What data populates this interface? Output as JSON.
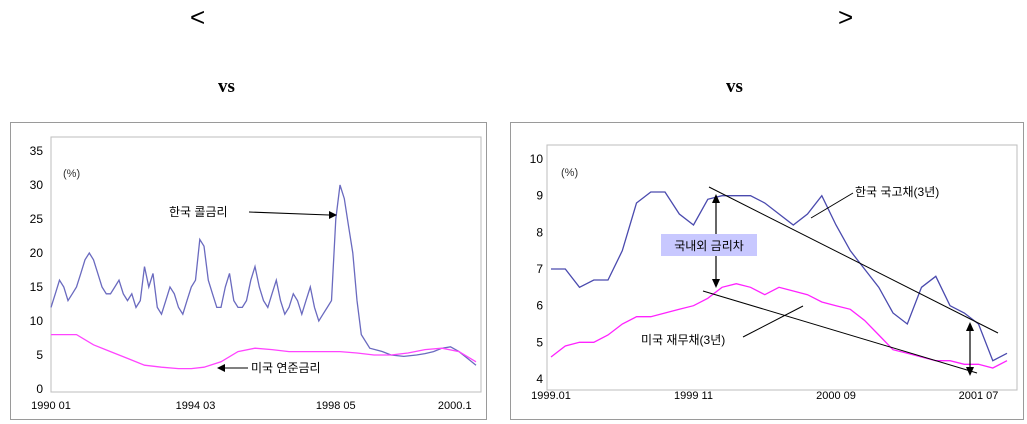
{
  "header": {
    "left_bracket": "<",
    "right_bracket": ">",
    "vs_left": "vs",
    "vs_right": "vs"
  },
  "chart_data": [
    {
      "type": "line",
      "unit": "(%)",
      "ylim": [
        0,
        35
      ],
      "yticks": [
        "0",
        "5",
        "10",
        "15",
        "20",
        "25",
        "30",
        "35"
      ],
      "xticks": [
        "1990 01",
        "1994 03",
        "1998 05",
        "2000.1"
      ],
      "x_index_range": [
        0,
        100
      ],
      "xtick_index": [
        0,
        34,
        67,
        95
      ],
      "grid": false,
      "series": [
        {
          "name": "한국 콜금리",
          "color": "#6a6abf",
          "x": [
            0,
            1,
            2,
            3,
            4,
            5,
            6,
            7,
            8,
            9,
            10,
            11,
            12,
            13,
            14,
            15,
            16,
            17,
            18,
            19,
            20,
            21,
            22,
            23,
            24,
            25,
            26,
            27,
            28,
            29,
            30,
            31,
            32,
            33,
            34,
            35,
            36,
            37,
            38,
            39,
            40,
            41,
            42,
            43,
            44,
            45,
            46,
            47,
            48,
            49,
            50,
            51,
            52,
            53,
            54,
            55,
            56,
            57,
            58,
            59,
            60,
            61,
            62,
            63,
            64,
            65,
            66,
            67,
            68,
            69,
            70,
            71,
            72,
            73,
            75,
            78,
            80,
            83,
            86,
            88,
            90,
            92,
            94,
            96,
            98,
            100
          ],
          "y": [
            12,
            14,
            16,
            15,
            13,
            14,
            15,
            17,
            19,
            20,
            19,
            17,
            15,
            14,
            14,
            15,
            16,
            14,
            13,
            14,
            12,
            13,
            18,
            15,
            17,
            12,
            11,
            13,
            15,
            14,
            12,
            11,
            13,
            15,
            16,
            22,
            21,
            16,
            14,
            12,
            12,
            15,
            17,
            13,
            12,
            12,
            13,
            16,
            18,
            15,
            13,
            12,
            14,
            16,
            13,
            11,
            12,
            14,
            13,
            11,
            13,
            15,
            12,
            10,
            11,
            12,
            13,
            25,
            30,
            28,
            24,
            20,
            13,
            8,
            6,
            5.5,
            5,
            4.8,
            5,
            5.2,
            5.5,
            6,
            6.2,
            5.5,
            4.5,
            3.5
          ]
        },
        {
          "name": "미국 연준금리",
          "color": "#ff44ff",
          "x": [
            0,
            4,
            6,
            10,
            14,
            18,
            22,
            26,
            30,
            33,
            36,
            40,
            44,
            48,
            52,
            56,
            60,
            64,
            68,
            72,
            76,
            80,
            84,
            88,
            92,
            96,
            100
          ],
          "y": [
            8,
            8,
            8,
            6.5,
            5.5,
            4.5,
            3.5,
            3.2,
            3,
            3,
            3.2,
            4,
            5.5,
            6,
            5.8,
            5.5,
            5.5,
            5.5,
            5.5,
            5.3,
            5,
            5,
            5.3,
            5.8,
            6,
            5.5,
            4
          ]
        }
      ],
      "annotations": [
        {
          "text": "한국 콜금리"
        },
        {
          "text": "미국 연준금리"
        }
      ]
    },
    {
      "type": "line",
      "unit": "(%)",
      "ylim": [
        4,
        10
      ],
      "yticks": [
        "4",
        "5",
        "6",
        "7",
        "8",
        "9",
        "10"
      ],
      "xticks": [
        "1999.01",
        "1999 11",
        "2000 09",
        "2001 07"
      ],
      "x_index_range": [
        0,
        32
      ],
      "xtick_index": [
        0,
        10,
        20,
        30
      ],
      "grid": false,
      "series": [
        {
          "name": "한국 국고채(3년)",
          "color": "#4a4aae",
          "x": [
            0,
            1,
            2,
            3,
            4,
            5,
            6,
            7,
            8,
            9,
            10,
            11,
            12,
            13,
            14,
            15,
            16,
            17,
            18,
            19,
            20,
            21,
            22,
            23,
            24,
            25,
            26,
            27,
            28,
            29,
            30,
            31,
            32
          ],
          "y": [
            7,
            7,
            6.5,
            6.7,
            6.7,
            7.5,
            8.8,
            9.1,
            9.1,
            8.5,
            8.2,
            8.9,
            9,
            9,
            9,
            8.8,
            8.5,
            8.2,
            8.5,
            9,
            8.2,
            7.5,
            7,
            6.5,
            5.8,
            5.5,
            6.5,
            6.8,
            6,
            5.8,
            5.5,
            4.5,
            4.7
          ]
        },
        {
          "name": "미국 재무채(3년)",
          "color": "#ff22ff",
          "x": [
            0,
            1,
            2,
            3,
            4,
            5,
            6,
            7,
            8,
            9,
            10,
            11,
            12,
            13,
            14,
            15,
            16,
            17,
            18,
            19,
            20,
            21,
            22,
            23,
            24,
            25,
            26,
            27,
            28,
            29,
            30,
            31,
            32
          ],
          "y": [
            4.6,
            4.9,
            5,
            5,
            5.2,
            5.5,
            5.7,
            5.7,
            5.8,
            5.9,
            6,
            6.2,
            6.5,
            6.6,
            6.5,
            6.3,
            6.5,
            6.4,
            6.3,
            6.1,
            6,
            5.9,
            5.6,
            5.2,
            4.8,
            4.7,
            4.6,
            4.5,
            4.5,
            4.4,
            4.4,
            4.3,
            4.5
          ]
        }
      ],
      "annotations": [
        {
          "text": "한국 국고채(3년)"
        },
        {
          "text": "미국 재무채(3년)"
        },
        {
          "text": "국내외 금리차",
          "bg": "#c8c8ff"
        }
      ]
    }
  ]
}
